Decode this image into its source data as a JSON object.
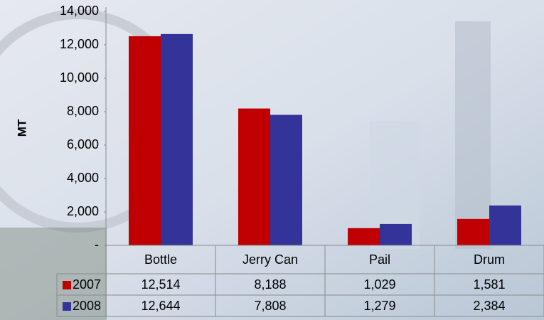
{
  "chart_data": {
    "type": "bar",
    "y_label": "MT",
    "categories": [
      "Bottle",
      "Jerry Can",
      "Pail",
      "Drum"
    ],
    "series": [
      {
        "name": "2007",
        "color": "#c00000",
        "values": [
          12514,
          8188,
          1029,
          1581
        ],
        "value_labels": [
          "12,514",
          "8,188",
          "1,029",
          "1,581"
        ]
      },
      {
        "name": "2008",
        "color": "#333399",
        "values": [
          12644,
          7808,
          1279,
          2384
        ],
        "value_labels": [
          "12,644",
          "7,808",
          "1,279",
          "2,384"
        ]
      }
    ],
    "ylim": [
      0,
      14000
    ],
    "yticks": [
      {
        "value": 0,
        "label": "-"
      },
      {
        "value": 2000,
        "label": "2,000"
      },
      {
        "value": 4000,
        "label": "4,000"
      },
      {
        "value": 6000,
        "label": "6,000"
      },
      {
        "value": 8000,
        "label": "8,000"
      },
      {
        "value": 10000,
        "label": "10,000"
      },
      {
        "value": 12000,
        "label": "12,000"
      },
      {
        "value": 14000,
        "label": "14,000"
      }
    ],
    "grid": false,
    "data_table": true
  }
}
